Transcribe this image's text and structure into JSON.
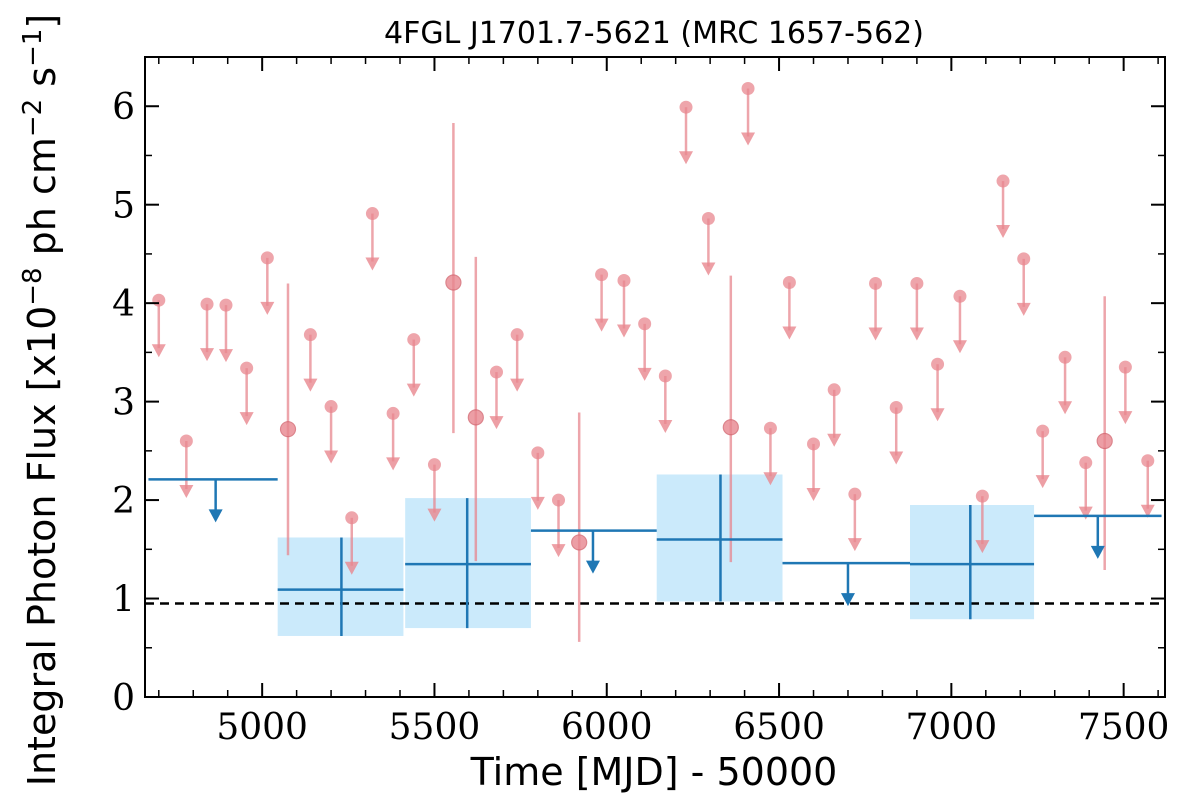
{
  "chart_data": {
    "type": "scatter",
    "title": "4FGL J1701.7-5621 (MRC 1657-562)",
    "xlabel": "Time [MJD] - 50000",
    "ylabel": "Integral Photon Flux [x10$^{-8}$ ph cm$^{-2}$ s$^{-1}$]",
    "ylabel_parts": {
      "base": "Integral Photon Flux [x10",
      "exp1": "−8",
      "mid": " ph cm",
      "exp2": "−2",
      "mid2": " s",
      "exp3": "−1",
      "end": "]"
    },
    "xlim": [
      4660,
      7620
    ],
    "ylim": [
      0,
      6.5
    ],
    "xticks": [
      5000,
      5500,
      6000,
      6500,
      7000,
      7500
    ],
    "yticks": [
      0,
      1,
      2,
      3,
      4,
      5,
      6
    ],
    "reference_line": 0.95,
    "colors": {
      "fine": "#e8878f",
      "coarse": "#1f77b4",
      "band": "#cbeafb",
      "ref": "#000000"
    },
    "series": [
      {
        "bin_days": 30,
        "upper_limits": [
          [
            4700,
            4.03
          ],
          [
            4780,
            2.6
          ],
          [
            4840,
            3.99
          ],
          [
            4895,
            3.98
          ],
          [
            4955,
            3.34
          ],
          [
            5015,
            4.46
          ],
          [
            5140,
            3.68
          ],
          [
            5200,
            2.95
          ],
          [
            5260,
            1.82
          ],
          [
            5320,
            4.91
          ],
          [
            5380,
            2.88
          ],
          [
            5440,
            3.63
          ],
          [
            5500,
            2.36
          ],
          [
            5680,
            3.3
          ],
          [
            5740,
            3.68
          ],
          [
            5800,
            2.48
          ],
          [
            5860,
            2.0
          ],
          [
            5985,
            4.29
          ],
          [
            6050,
            4.23
          ],
          [
            6110,
            3.79
          ],
          [
            6170,
            3.26
          ],
          [
            6230,
            5.99
          ],
          [
            6295,
            4.86
          ],
          [
            6410,
            6.18
          ],
          [
            6475,
            2.73
          ],
          [
            6530,
            4.21
          ],
          [
            6600,
            2.57
          ],
          [
            6660,
            3.12
          ],
          [
            6720,
            2.06
          ],
          [
            6780,
            4.2
          ],
          [
            6840,
            2.94
          ],
          [
            6900,
            4.2
          ],
          [
            6960,
            3.38
          ],
          [
            7025,
            4.07
          ],
          [
            7090,
            2.04
          ],
          [
            7150,
            5.24
          ],
          [
            7210,
            4.45
          ],
          [
            7265,
            2.7
          ],
          [
            7330,
            3.45
          ],
          [
            7390,
            2.38
          ],
          [
            7505,
            3.35
          ],
          [
            7570,
            2.4
          ]
        ],
        "detections": [
          [
            5075,
            2.72,
            1.44,
            4.2
          ],
          [
            5555,
            4.21,
            2.68,
            5.83
          ],
          [
            5620,
            2.84,
            1.38,
            4.47
          ],
          [
            5920,
            1.57,
            0.56,
            2.89
          ],
          [
            6360,
            2.74,
            1.37,
            4.28
          ],
          [
            7445,
            2.6,
            1.29,
            4.07
          ]
        ]
      },
      {
        "bin_days": 365,
        "upper_limits": [
          [
            4670,
            5045,
            2.21,
            4865
          ],
          [
            5780,
            6145,
            1.69,
            5960
          ],
          [
            6510,
            6880,
            1.36,
            6700
          ],
          [
            7240,
            7610,
            1.84,
            7425
          ]
        ],
        "detections": [
          [
            5045,
            5410,
            1.09,
            0.62,
            1.62,
            5230
          ],
          [
            5415,
            5780,
            1.35,
            0.7,
            2.02,
            5595
          ],
          [
            6145,
            6510,
            1.6,
            0.97,
            2.26,
            6330
          ],
          [
            6880,
            7240,
            1.35,
            0.79,
            1.95,
            7055
          ]
        ]
      }
    ]
  }
}
